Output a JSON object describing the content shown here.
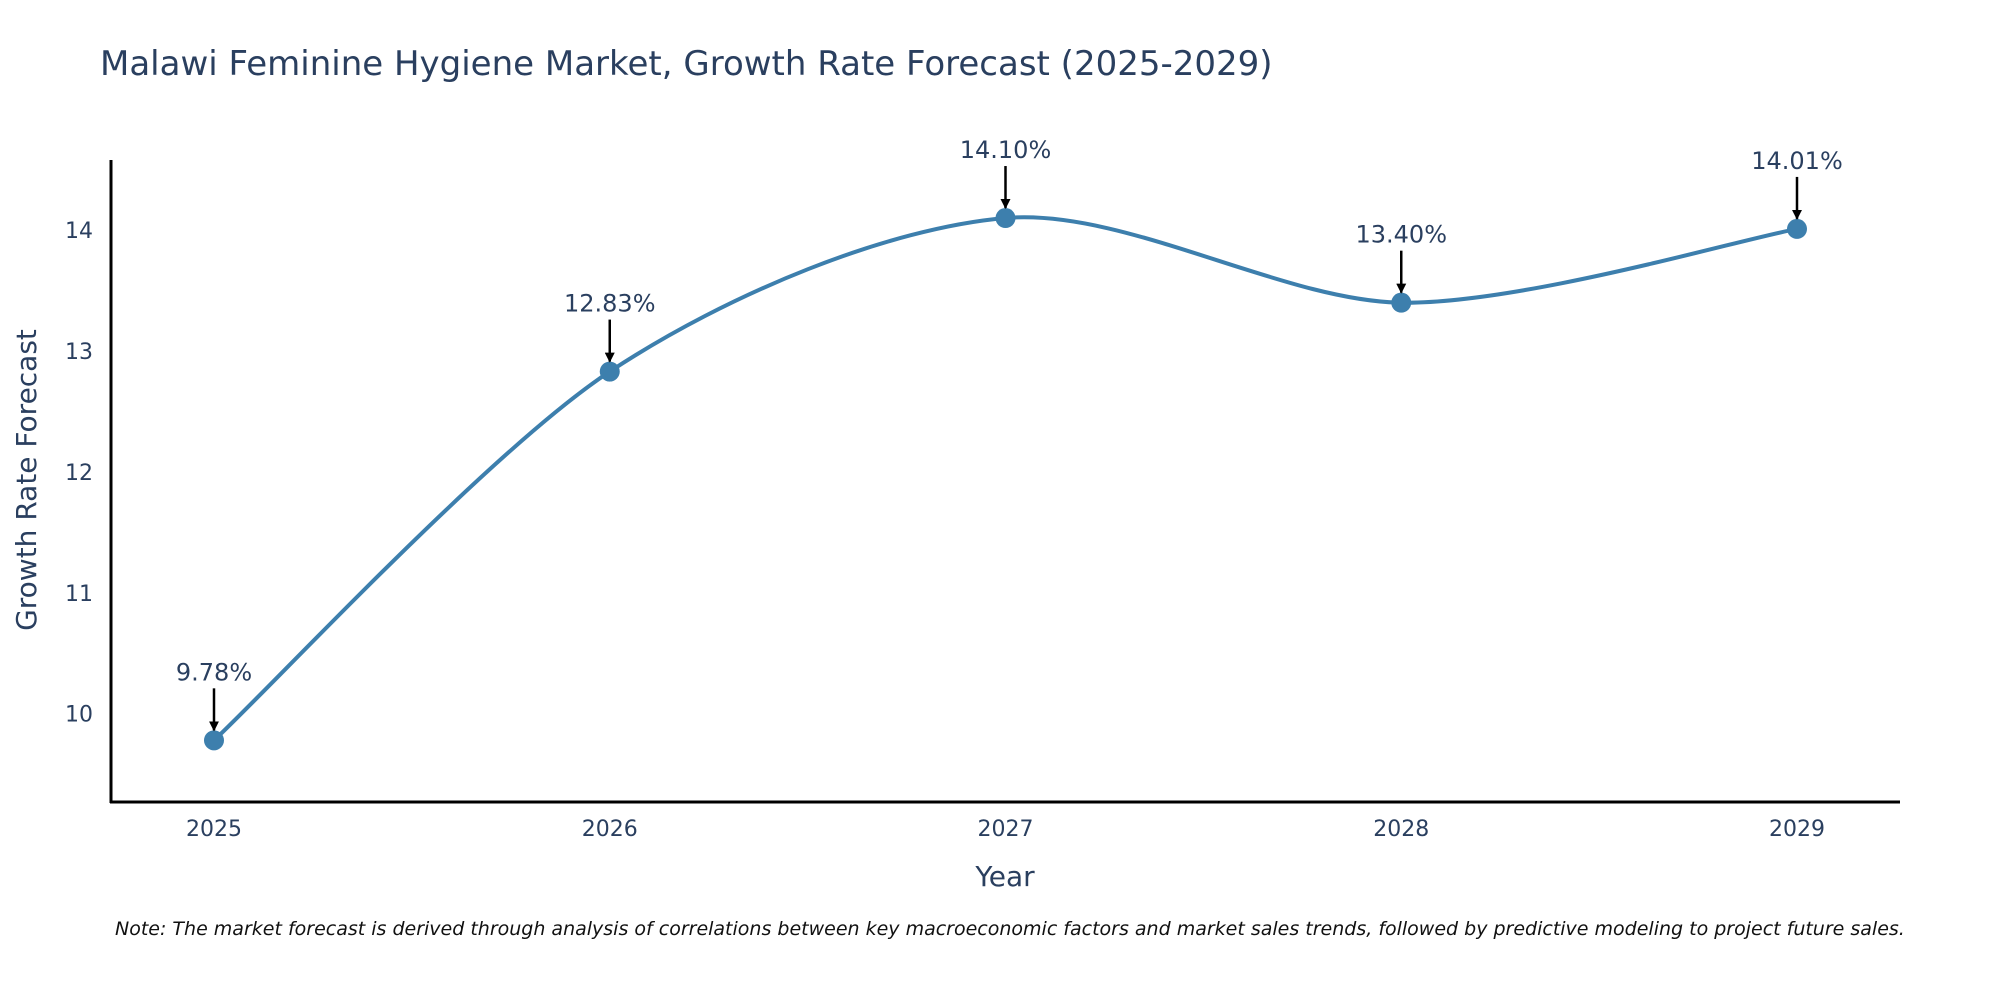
{
  "chart_data": {
    "type": "line",
    "title": "Malawi Feminine Hygiene Market, Growth Rate Forecast (2025-2029)",
    "xlabel": "Year",
    "ylabel": "Growth Rate Forecast",
    "categories": [
      "2025",
      "2026",
      "2027",
      "2028",
      "2029"
    ],
    "values": [
      9.78,
      12.83,
      14.1,
      13.4,
      14.01
    ],
    "data_labels": [
      "9.78%",
      "12.83%",
      "14.10%",
      "13.40%",
      "14.01%"
    ],
    "y_ticks": [
      10,
      11,
      12,
      13,
      14
    ],
    "ylim": [
      9.27,
      14.58
    ],
    "grid": false,
    "legend": "none",
    "line_color": "#3d7fad",
    "marker_color": "#3d7fad",
    "arrow_color": "#000000",
    "text_color": "#2a3f5f"
  },
  "note": "Note: The market forecast is derived through analysis of correlations between key macroeconomic factors and market sales trends, followed by predictive modeling to project future sales."
}
